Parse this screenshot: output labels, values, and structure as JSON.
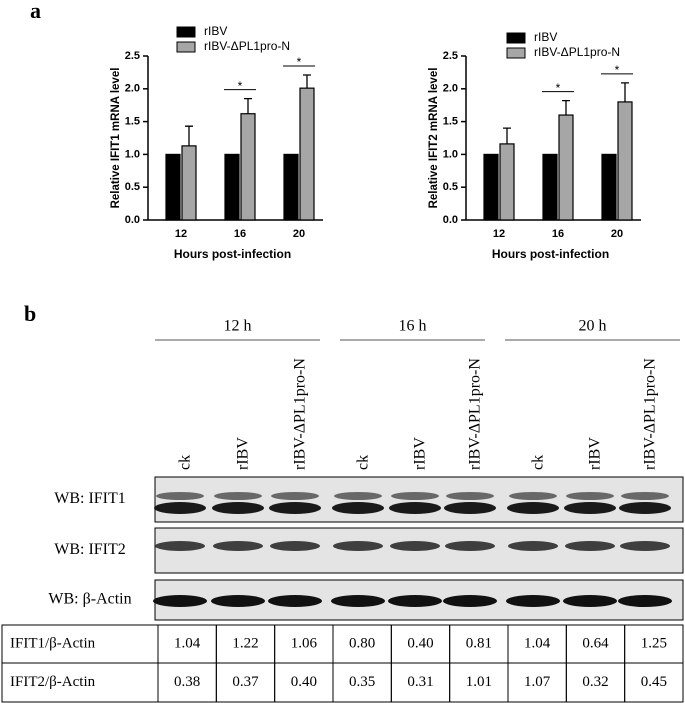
{
  "panel_labels": [
    "a",
    "b"
  ],
  "chart_data": [
    {
      "type": "bar",
      "ylabel": "Relative IFIT1 mRNA level",
      "xlabel": "Hours post-infection",
      "categories": [
        "12",
        "16",
        "20"
      ],
      "series": [
        {
          "name": "rIBV",
          "color": "#000000",
          "values": [
            1.0,
            1.0,
            1.0
          ]
        },
        {
          "name": "rIBV-ΔPL1pro-N",
          "color": "#a6a6a6",
          "values": [
            1.13,
            1.62,
            2.01
          ],
          "errors": [
            0.3,
            0.23,
            0.2
          ]
        }
      ],
      "significance": [
        null,
        "*",
        "*"
      ],
      "ylim": [
        0,
        2.5
      ],
      "yticks": [
        {
          "value": 0,
          "label": "0.0"
        },
        0.5,
        {
          "value": 1,
          "label": "1.0"
        },
        1.5,
        {
          "value": 2,
          "label": "2.0"
        },
        2.5
      ]
    },
    {
      "type": "bar",
      "ylabel": "Relative IFIT2 mRNA level",
      "xlabel": "Hours post-infection",
      "categories": [
        "12",
        "16",
        "20"
      ],
      "series": [
        {
          "name": "rIBV",
          "color": "#000000",
          "values": [
            1.0,
            1.0,
            1.0
          ]
        },
        {
          "name": "rIBV-ΔPL1pro-N",
          "color": "#a6a6a6",
          "values": [
            1.16,
            1.6,
            1.8
          ],
          "errors": [
            0.24,
            0.22,
            0.29
          ]
        }
      ],
      "significance": [
        null,
        "*",
        "*"
      ],
      "ylim": [
        0,
        2.5
      ],
      "yticks": [
        {
          "value": 0,
          "label": "0.0"
        },
        0.5,
        {
          "value": 1,
          "label": "1.0"
        },
        1.5,
        {
          "value": 2,
          "label": "2.0"
        },
        2.5
      ]
    }
  ],
  "blot": {
    "time_points": [
      "12 h",
      "16 h",
      "20 h"
    ],
    "lanes": [
      "ck",
      "rIBV",
      "rIBV-ΔPL1pro-N",
      "ck",
      "rIBV",
      "rIBV-ΔPL1pro-N",
      "ck",
      "rIBV",
      "rIBV-ΔPL1pro-N"
    ],
    "rows": [
      "WB: IFIT1",
      "WB: IFIT2",
      "WB: β-Actin"
    ]
  },
  "table": {
    "rows": [
      {
        "label": "IFIT1/β-Actin",
        "values": [
          "1.04",
          "1.22",
          "1.06",
          "0.80",
          "0.40",
          "0.81",
          "1.04",
          "0.64",
          "1.25"
        ]
      },
      {
        "label": "IFIT2/β-Actin",
        "values": [
          "0.38",
          "0.37",
          "0.40",
          "0.35",
          "0.31",
          "1.01",
          "1.07",
          "0.32",
          "0.45"
        ]
      }
    ]
  }
}
